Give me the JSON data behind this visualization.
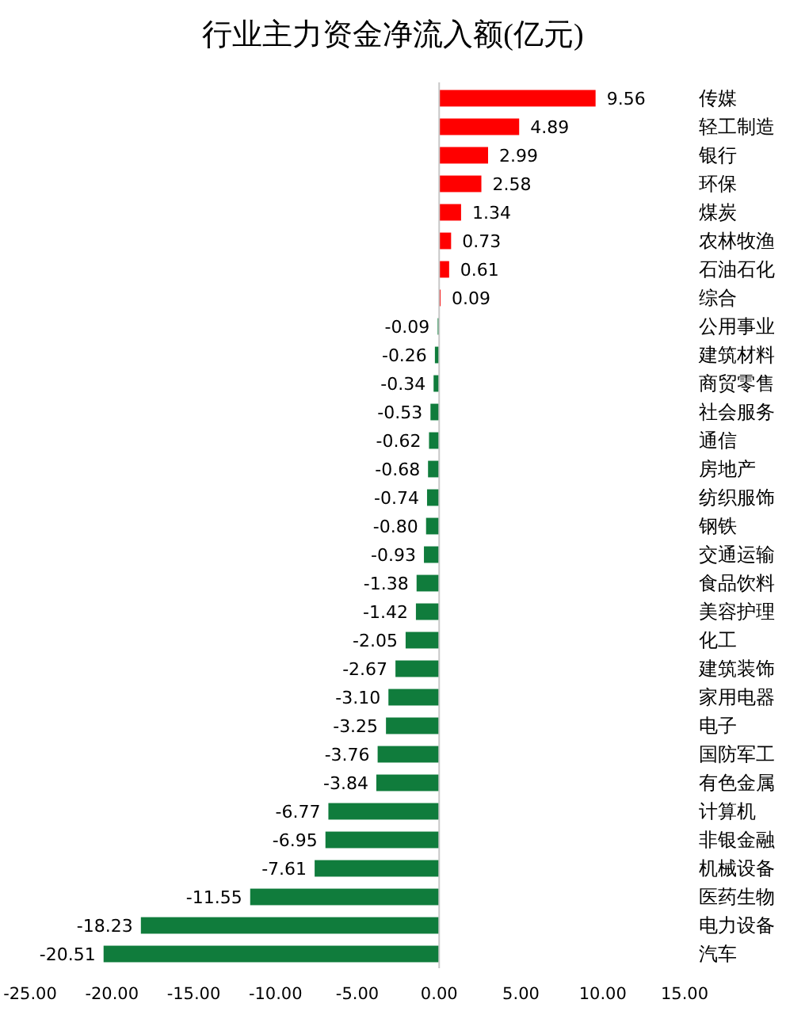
{
  "chart_data": {
    "type": "bar",
    "orientation": "horizontal",
    "title": "行业主力资金净流入额(亿元)",
    "categories": [
      "传媒",
      "轻工制造",
      "银行",
      "环保",
      "煤炭",
      "农林牧渔",
      "石油石化",
      "综合",
      "公用事业",
      "建筑材料",
      "商贸零售",
      "社会服务",
      "通信",
      "房地产",
      "纺织服饰",
      "钢铁",
      "交通运输",
      "食品饮料",
      "美容护理",
      "化工",
      "建筑装饰",
      "家用电器",
      "电子",
      "国防军工",
      "有色金属",
      "计算机",
      "非银金融",
      "机械设备",
      "医药生物",
      "电力设备",
      "汽车"
    ],
    "values": [
      9.56,
      4.89,
      2.99,
      2.58,
      1.34,
      0.73,
      0.61,
      0.09,
      -0.09,
      -0.26,
      -0.34,
      -0.53,
      -0.62,
      -0.68,
      -0.74,
      -0.8,
      -0.93,
      -1.38,
      -1.42,
      -2.05,
      -2.67,
      -3.1,
      -3.25,
      -3.76,
      -3.84,
      -6.77,
      -6.95,
      -7.61,
      -11.55,
      -18.23,
      -20.51
    ],
    "value_labels": [
      "9.56",
      "4.89",
      "2.99",
      "2.58",
      "1.34",
      "0.73",
      "0.61",
      "0.09",
      "-0.09",
      "-0.26",
      "-0.34",
      "-0.53",
      "-0.62",
      "-0.68",
      "-0.74",
      "-0.80",
      "-0.93",
      "-1.38",
      "-1.42",
      "-2.05",
      "-2.67",
      "-3.10",
      "-3.25",
      "-3.76",
      "-3.84",
      "-6.77",
      "-6.95",
      "-7.61",
      "-11.55",
      "-18.23",
      "-20.51"
    ],
    "colors": [
      "#ff0000",
      "#ff0000",
      "#ff0000",
      "#ff0000",
      "#ff0000",
      "#ff0000",
      "#ff0000",
      "#ff0000",
      "#107c3c",
      "#107c3c",
      "#107c3c",
      "#107c3c",
      "#107c3c",
      "#107c3c",
      "#107c3c",
      "#107c3c",
      "#107c3c",
      "#107c3c",
      "#107c3c",
      "#107c3c",
      "#107c3c",
      "#107c3c",
      "#107c3c",
      "#107c3c",
      "#107c3c",
      "#107c3c",
      "#107c3c",
      "#107c3c",
      "#107c3c",
      "#107c3c",
      "#107c3c"
    ],
    "xlim": [
      -25,
      15
    ],
    "xticks": [
      {
        "value": -25,
        "label": "-25.00"
      },
      {
        "value": -20,
        "label": "-20.00"
      },
      {
        "value": -15,
        "label": "-15.00"
      },
      {
        "value": -10,
        "label": "-10.00"
      },
      {
        "value": -5,
        "label": "-5.00"
      },
      {
        "value": 0,
        "label": "0.00"
      },
      {
        "value": 5,
        "label": "5.00"
      },
      {
        "value": 10,
        "label": "10.00"
      },
      {
        "value": 15,
        "label": "15.00"
      }
    ]
  }
}
